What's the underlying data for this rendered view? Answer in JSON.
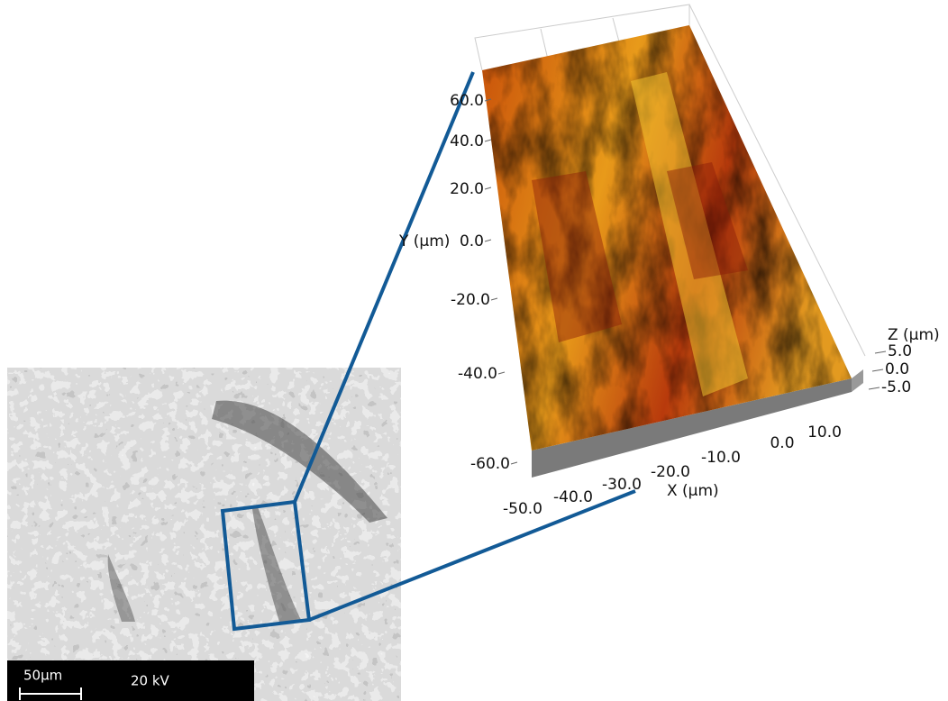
{
  "sem": {
    "scale_bar": "50µm",
    "voltage": "20 kV"
  },
  "afm": {
    "y_label": "Y (µm)",
    "y_ticks": [
      "60.0",
      "40.0",
      "20.0",
      "0.0",
      "-20.0",
      "-40.0",
      "-60.0"
    ],
    "x_label": "X (µm)",
    "x_ticks": [
      "-50.0",
      "-40.0",
      "-30.0",
      "-20.0",
      "-10.0",
      "0.0",
      "10.0"
    ],
    "z_label": "Z (µm)",
    "z_ticks": [
      "5.0",
      "0.0",
      "-5.0"
    ]
  }
}
